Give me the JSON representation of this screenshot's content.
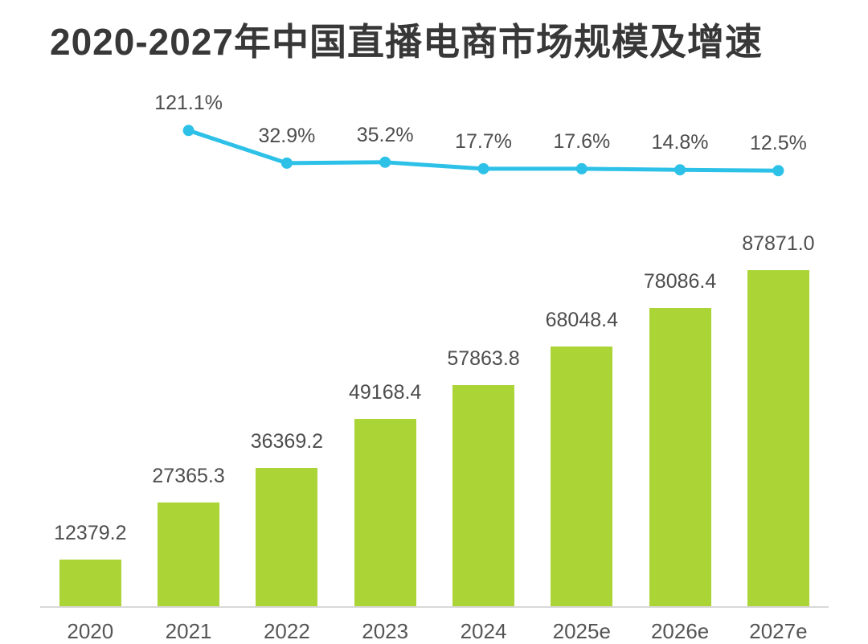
{
  "title": "2020-2027年中国直播电商市场规模及增速",
  "colors": {
    "bar": "#abd437",
    "line": "#2dc1e8",
    "title_text": "#383838",
    "data_label_text": "#4d4d4d",
    "axis_label_text": "#555555",
    "axis_line": "#d8d8d8",
    "background": "#ffffff"
  },
  "chart_data": {
    "type": "bar",
    "subtype": "bar+line combo, values shown as data labels, no visible y-axis, grid off, no legend",
    "title": "2020-2027年中国直播电商市场规模及增速",
    "xlabel": "",
    "ylabel": "",
    "categories": [
      "2020",
      "2021",
      "2022",
      "2023",
      "2024",
      "2025e",
      "2026e",
      "2027e"
    ],
    "bar_series": {
      "values": [
        12379.2,
        27365.3,
        36369.2,
        49168.4,
        57863.8,
        68048.4,
        78086.4,
        87871.0
      ],
      "labels": [
        "12379.2",
        "27365.3",
        "36369.2",
        "49168.4",
        "57863.8",
        "68048.4",
        "78086.4",
        "87871.0"
      ]
    },
    "line_series": {
      "categories": [
        "2021",
        "2022",
        "2023",
        "2024",
        "2025e",
        "2026e",
        "2027e"
      ],
      "values": [
        121.1,
        32.9,
        35.2,
        17.7,
        17.6,
        14.8,
        12.5
      ],
      "labels": [
        "121.1%",
        "32.9%",
        "35.2%",
        "17.7%",
        "17.6%",
        "14.8%",
        "12.5%"
      ]
    }
  }
}
